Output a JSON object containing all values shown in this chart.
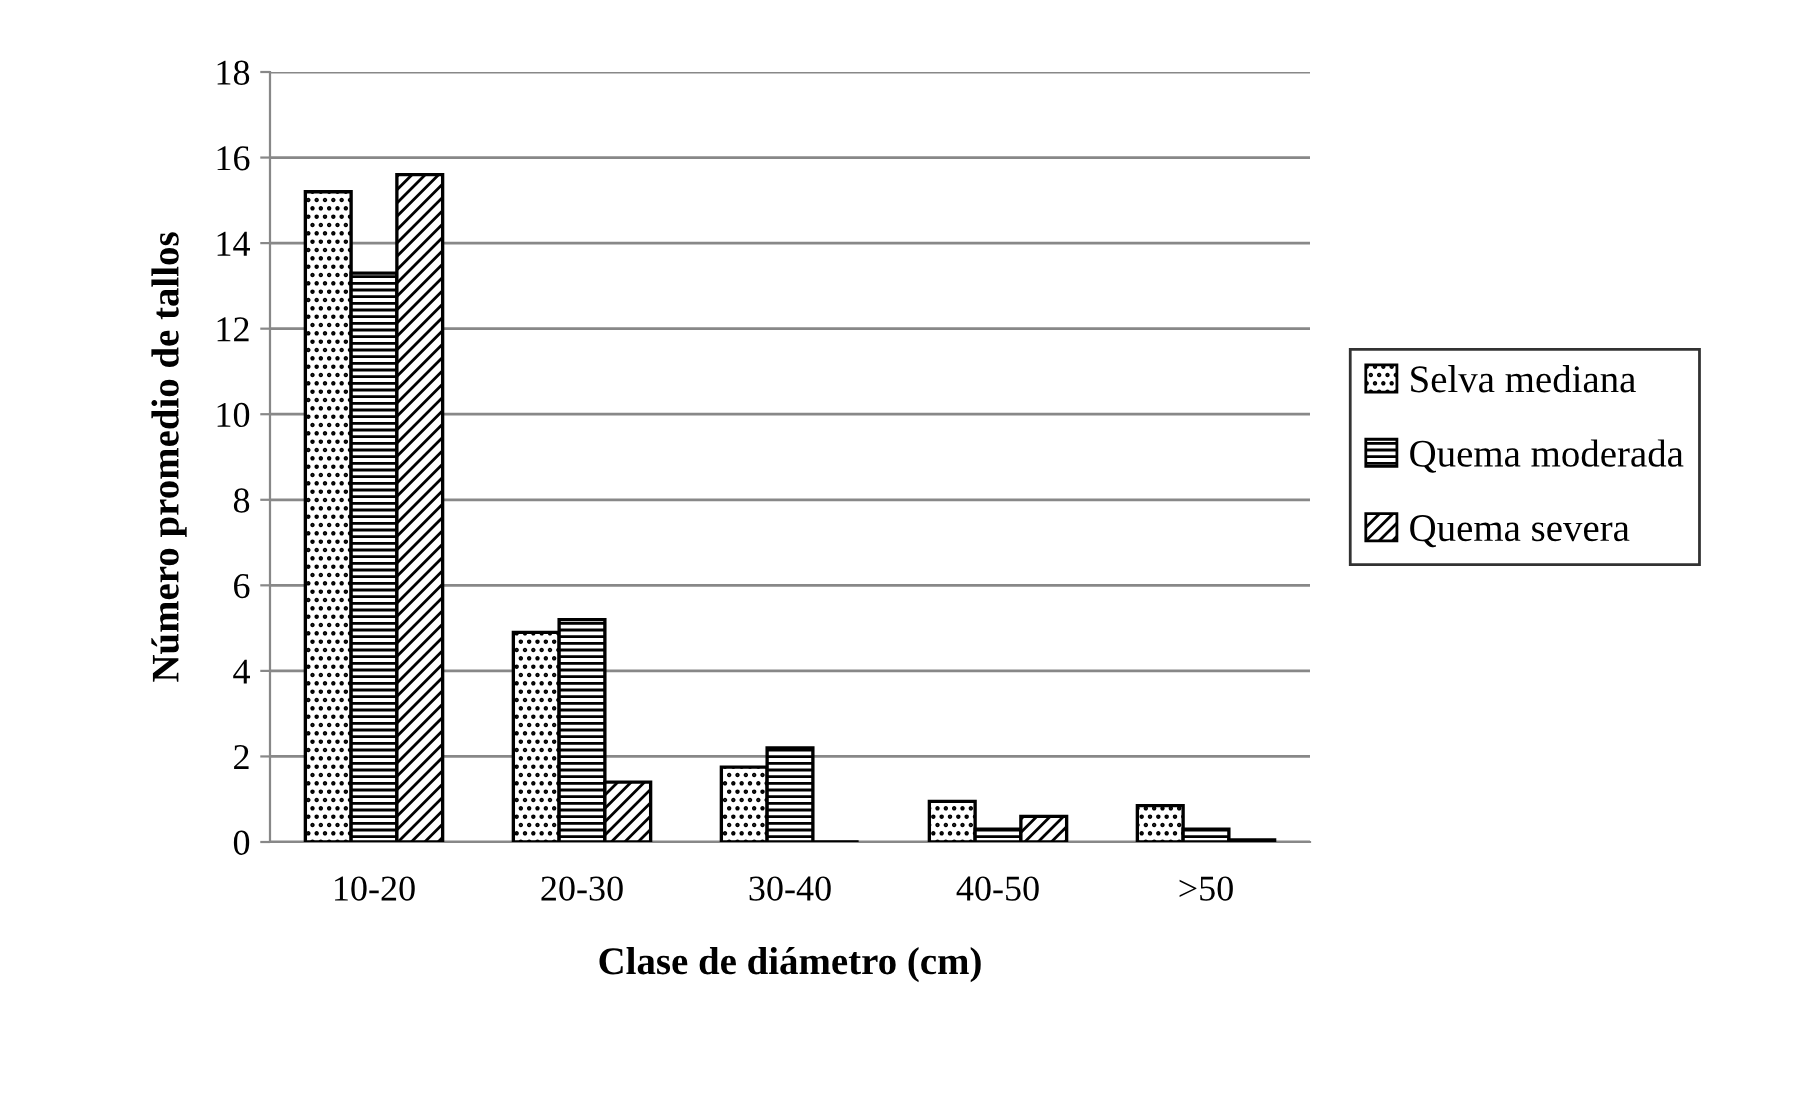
{
  "chart_data": {
    "type": "bar",
    "xlabel": "Clase de diámetro (cm)",
    "ylabel": "Número promedio de tallos",
    "categories": [
      "10-20",
      "20-30",
      "30-40",
      "40-50",
      ">50"
    ],
    "series": [
      {
        "name": "Selva mediana",
        "color": "#000000",
        "values": [
          15.2,
          4.9,
          1.75,
          0.95,
          0.85
        ]
      },
      {
        "name": "Quema moderada",
        "color": "#000000",
        "values": [
          13.3,
          5.2,
          2.2,
          0.3,
          0.3
        ]
      },
      {
        "name": "Quema severa",
        "color": "#000000",
        "values": [
          15.6,
          1.4,
          0,
          0.6,
          0.05
        ]
      }
    ],
    "ylim": [
      0,
      18
    ],
    "yticks": [
      0,
      2,
      4,
      6,
      8,
      10,
      12,
      14,
      16,
      18
    ],
    "grid": "y",
    "legend": "right"
  }
}
